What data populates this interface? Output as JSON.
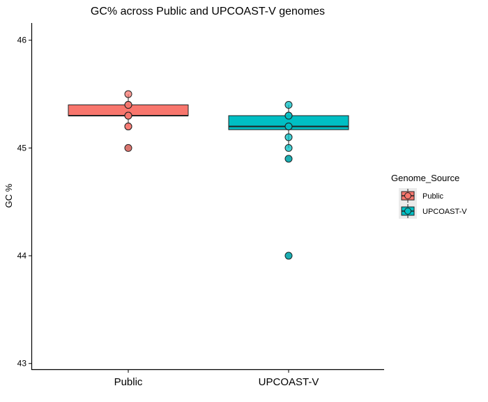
{
  "chart_data": {
    "type": "boxplot",
    "title": "GC% across Public and UPCOAST-V genomes",
    "xlabel": "",
    "ylabel": "GC %",
    "ylim": [
      42.94,
      46.16
    ],
    "yticks": [
      43,
      44,
      45,
      46
    ],
    "categories": [
      "Public",
      "UPCOAST-V"
    ],
    "grid": false,
    "legend": {
      "title": "Genome_Source",
      "position": "right",
      "entries": [
        "Public",
        "UPCOAST-V"
      ]
    },
    "series": [
      {
        "category": "Public",
        "color": "#F8766D",
        "box": {
          "q1": 45.3,
          "median": 45.3,
          "q3": 45.4,
          "whisker_low": 45.2,
          "whisker_high": 45.5
        },
        "points": [
          45.5,
          45.4,
          45.4,
          45.3,
          45.3,
          45.3,
          45.2,
          45.2,
          45.0
        ],
        "outliers": [
          45.0
        ]
      },
      {
        "category": "UPCOAST-V",
        "color": "#00BFC4",
        "box": {
          "q1": 45.17,
          "median": 45.2,
          "q3": 45.3,
          "whisker_low": 45.0,
          "whisker_high": 45.4
        },
        "points": [
          45.4,
          45.3,
          45.3,
          45.2,
          45.2,
          45.1,
          45.0,
          44.9,
          44.0
        ],
        "outliers": [
          44.9,
          44.0
        ]
      }
    ]
  }
}
